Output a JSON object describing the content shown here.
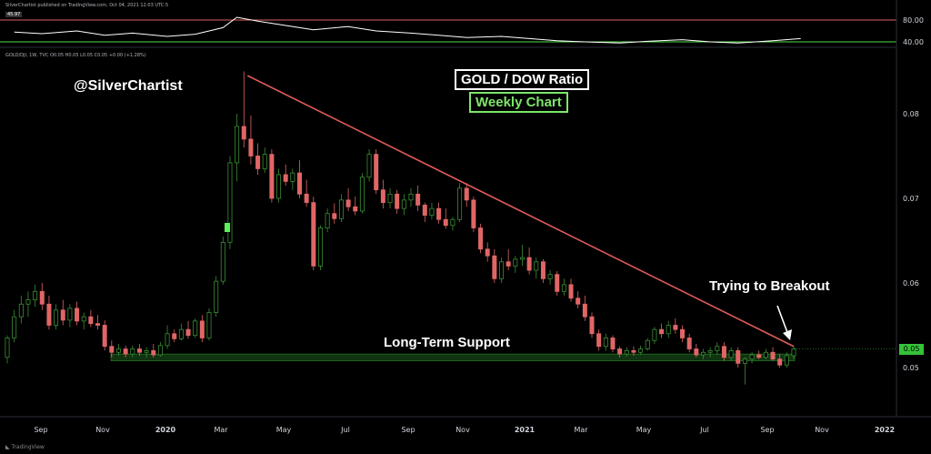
{
  "header": {
    "published": "SilverChartist published on TradingView.com, Oct 04, 2021 12:03 UTC-5",
    "symbol_line": "GOLD/DJI, 1W, TVC  O0.05  H0.05  L0.05  C0.05  +0.00 (+1.28%)",
    "oscillator_value": "45.97"
  },
  "annotations": {
    "handle": "@SilverChartist",
    "title": "GOLD / DOW Ratio",
    "subtitle": "Weekly Chart",
    "breakout": "Trying to Breakout",
    "support": "Long-Term Support"
  },
  "price_badge": "0.05",
  "logo": "TradingView",
  "colors": {
    "up": "#3a8f33",
    "down": "#e06666",
    "trendline": "#e05a5a",
    "support_zone": "#1d5c1d",
    "osc_upper": "#e06060",
    "osc_lower": "#54d84a",
    "osc_line": "#ffffff"
  },
  "chart_data": [
    {
      "type": "line",
      "title": "",
      "description_levels": [
        80,
        40
      ],
      "yticks": [
        "80.00",
        "40.00"
      ],
      "ylim": [
        30,
        90
      ],
      "x": [
        "2019-08-05",
        "2019-09-02",
        "2019-10-07",
        "2019-11-04",
        "2019-12-02",
        "2020-01-06",
        "2020-02-03",
        "2020-03-02",
        "2020-03-16",
        "2020-04-06",
        "2020-05-04",
        "2020-06-01",
        "2020-07-06",
        "2020-08-03",
        "2020-09-07",
        "2020-10-05",
        "2020-11-02",
        "2020-12-07",
        "2021-01-04",
        "2021-02-01",
        "2021-03-01",
        "2021-04-05",
        "2021-05-03",
        "2021-06-07",
        "2021-07-05",
        "2021-08-02",
        "2021-09-06",
        "2021-10-04"
      ],
      "series": [
        {
          "values": [
            58,
            55,
            60,
            52,
            56,
            50,
            54,
            66,
            85,
            78,
            70,
            62,
            68,
            60,
            56,
            52,
            48,
            50,
            46,
            42,
            40,
            38,
            41,
            44,
            40,
            38,
            42,
            46
          ]
        }
      ]
    },
    {
      "type": "candlestick",
      "title": "GOLD / DOW Ratio",
      "ylim": [
        0.0445,
        0.0885
      ],
      "yticks": [
        "0.08",
        "0.07",
        "0.06",
        "0.05"
      ],
      "xticks": [
        "Sep",
        "Nov",
        "2020",
        "Mar",
        "May",
        "Jul",
        "Sep",
        "Nov",
        "2021",
        "Mar",
        "May",
        "Jul",
        "Sep",
        "Nov",
        "2022"
      ],
      "candles": [
        [
          "2019-07-29",
          0.0512,
          0.0538,
          0.0505,
          0.0535
        ],
        [
          "2019-08-05",
          0.0535,
          0.0568,
          0.053,
          0.056
        ],
        [
          "2019-08-12",
          0.056,
          0.0585,
          0.0552,
          0.0575
        ],
        [
          "2019-08-19",
          0.0575,
          0.059,
          0.056,
          0.058
        ],
        [
          "2019-08-26",
          0.058,
          0.0598,
          0.0572,
          0.059
        ],
        [
          "2019-09-02",
          0.059,
          0.06,
          0.0568,
          0.0575
        ],
        [
          "2019-09-09",
          0.0575,
          0.0585,
          0.0545,
          0.055
        ],
        [
          "2019-09-16",
          0.055,
          0.0575,
          0.0545,
          0.0568
        ],
        [
          "2019-09-23",
          0.0568,
          0.058,
          0.055,
          0.0556
        ],
        [
          "2019-09-30",
          0.0556,
          0.0575,
          0.0548,
          0.057
        ],
        [
          "2019-10-07",
          0.057,
          0.0578,
          0.055,
          0.0555
        ],
        [
          "2019-10-14",
          0.0555,
          0.0565,
          0.0545,
          0.056
        ],
        [
          "2019-10-21",
          0.056,
          0.0568,
          0.0548,
          0.0552
        ],
        [
          "2019-10-28",
          0.0552,
          0.0562,
          0.0545,
          0.055
        ],
        [
          "2019-11-04",
          0.055,
          0.0556,
          0.052,
          0.0525
        ],
        [
          "2019-11-11",
          0.0525,
          0.0532,
          0.0512,
          0.0518
        ],
        [
          "2019-11-18",
          0.0518,
          0.0528,
          0.0514,
          0.0522
        ],
        [
          "2019-11-25",
          0.0522,
          0.0526,
          0.0512,
          0.0516
        ],
        [
          "2019-12-02",
          0.0516,
          0.0526,
          0.0512,
          0.0522
        ],
        [
          "2019-12-09",
          0.0522,
          0.0528,
          0.0514,
          0.0518
        ],
        [
          "2019-12-16",
          0.0518,
          0.0524,
          0.0512,
          0.052
        ],
        [
          "2019-12-23",
          0.052,
          0.0528,
          0.0512,
          0.0515
        ],
        [
          "2019-12-30",
          0.0515,
          0.053,
          0.0513,
          0.0526
        ],
        [
          "2020-01-06",
          0.0526,
          0.055,
          0.0522,
          0.054
        ],
        [
          "2020-01-13",
          0.054,
          0.0545,
          0.053,
          0.0534
        ],
        [
          "2020-01-20",
          0.0534,
          0.0552,
          0.0532,
          0.0545
        ],
        [
          "2020-01-27",
          0.0545,
          0.0555,
          0.0534,
          0.0538
        ],
        [
          "2020-02-03",
          0.0538,
          0.0558,
          0.0535,
          0.0555
        ],
        [
          "2020-02-10",
          0.0555,
          0.0562,
          0.053,
          0.0535
        ],
        [
          "2020-02-17",
          0.0535,
          0.057,
          0.0532,
          0.0565
        ],
        [
          "2020-02-24",
          0.0565,
          0.0608,
          0.056,
          0.0602
        ],
        [
          "2020-03-02",
          0.0602,
          0.0655,
          0.0598,
          0.0648
        ],
        [
          "2020-03-09",
          0.0648,
          0.075,
          0.064,
          0.0742
        ],
        [
          "2020-03-16",
          0.0742,
          0.08,
          0.072,
          0.0785
        ],
        [
          "2020-03-23",
          0.0785,
          0.085,
          0.076,
          0.077
        ],
        [
          "2020-03-30",
          0.077,
          0.0798,
          0.074,
          0.075
        ],
        [
          "2020-04-06",
          0.075,
          0.0765,
          0.0728,
          0.0735
        ],
        [
          "2020-04-13",
          0.0735,
          0.076,
          0.073,
          0.0752
        ],
        [
          "2020-04-20",
          0.0752,
          0.0758,
          0.0695,
          0.07
        ],
        [
          "2020-04-27",
          0.07,
          0.0735,
          0.0695,
          0.0728
        ],
        [
          "2020-05-04",
          0.0728,
          0.074,
          0.0715,
          0.072
        ],
        [
          "2020-05-11",
          0.072,
          0.0735,
          0.071,
          0.073
        ],
        [
          "2020-05-18",
          0.073,
          0.0745,
          0.07,
          0.0705
        ],
        [
          "2020-05-25",
          0.0705,
          0.0722,
          0.069,
          0.0695
        ],
        [
          "2020-06-01",
          0.0695,
          0.0702,
          0.0615,
          0.062
        ],
        [
          "2020-06-08",
          0.062,
          0.0668,
          0.0615,
          0.0665
        ],
        [
          "2020-06-15",
          0.0665,
          0.0688,
          0.066,
          0.0682
        ],
        [
          "2020-06-22",
          0.0682,
          0.0694,
          0.067,
          0.0676
        ],
        [
          "2020-06-29",
          0.0676,
          0.0705,
          0.0672,
          0.0698
        ],
        [
          "2020-07-06",
          0.0698,
          0.0712,
          0.0685,
          0.069
        ],
        [
          "2020-07-13",
          0.069,
          0.0702,
          0.068,
          0.0685
        ],
        [
          "2020-07-20",
          0.0685,
          0.073,
          0.0682,
          0.0725
        ],
        [
          "2020-07-27",
          0.0725,
          0.0758,
          0.072,
          0.0752
        ],
        [
          "2020-08-03",
          0.0752,
          0.0758,
          0.0705,
          0.071
        ],
        [
          "2020-08-10",
          0.071,
          0.0722,
          0.0688,
          0.0695
        ],
        [
          "2020-08-17",
          0.0695,
          0.0712,
          0.0688,
          0.0705
        ],
        [
          "2020-08-24",
          0.0705,
          0.071,
          0.0682,
          0.0688
        ],
        [
          "2020-08-31",
          0.0688,
          0.0705,
          0.068,
          0.0698
        ],
        [
          "2020-09-07",
          0.0698,
          0.0712,
          0.069,
          0.0705
        ],
        [
          "2020-09-14",
          0.0705,
          0.0715,
          0.0685,
          0.0692
        ],
        [
          "2020-09-21",
          0.0692,
          0.0695,
          0.0672,
          0.068
        ],
        [
          "2020-09-28",
          0.068,
          0.0695,
          0.0675,
          0.0688
        ],
        [
          "2020-10-05",
          0.0688,
          0.0695,
          0.067,
          0.0675
        ],
        [
          "2020-10-12",
          0.0675,
          0.0688,
          0.0664,
          0.0668
        ],
        [
          "2020-10-19",
          0.0668,
          0.0678,
          0.0662,
          0.0675
        ],
        [
          "2020-10-26",
          0.0675,
          0.0718,
          0.0672,
          0.0712
        ],
        [
          "2020-11-02",
          0.0712,
          0.0718,
          0.069,
          0.0698
        ],
        [
          "2020-11-09",
          0.0698,
          0.0702,
          0.066,
          0.0665
        ],
        [
          "2020-11-16",
          0.0665,
          0.067,
          0.0635,
          0.064
        ],
        [
          "2020-11-23",
          0.064,
          0.0648,
          0.0625,
          0.0632
        ],
        [
          "2020-11-30",
          0.0632,
          0.064,
          0.06,
          0.0605
        ],
        [
          "2020-12-07",
          0.0605,
          0.063,
          0.06,
          0.0625
        ],
        [
          "2020-12-14",
          0.0625,
          0.064,
          0.0615,
          0.062
        ],
        [
          "2020-12-21",
          0.062,
          0.0632,
          0.0612,
          0.0628
        ],
        [
          "2020-12-28",
          0.0628,
          0.0645,
          0.062,
          0.063
        ],
        [
          "2021-01-04",
          0.063,
          0.0642,
          0.061,
          0.0615
        ],
        [
          "2021-01-11",
          0.0615,
          0.063,
          0.0605,
          0.0625
        ],
        [
          "2021-01-18",
          0.0625,
          0.0628,
          0.06,
          0.0605
        ],
        [
          "2021-01-25",
          0.0605,
          0.0615,
          0.0598,
          0.061
        ],
        [
          "2021-02-01",
          0.061,
          0.0614,
          0.0585,
          0.059
        ],
        [
          "2021-02-08",
          0.059,
          0.0605,
          0.0585,
          0.0598
        ],
        [
          "2021-02-15",
          0.0598,
          0.0605,
          0.0578,
          0.0582
        ],
        [
          "2021-02-22",
          0.0582,
          0.059,
          0.057,
          0.0575
        ],
        [
          "2021-03-01",
          0.0575,
          0.0585,
          0.0555,
          0.056
        ],
        [
          "2021-03-08",
          0.056,
          0.0565,
          0.0535,
          0.054
        ],
        [
          "2021-03-15",
          0.054,
          0.0545,
          0.052,
          0.0525
        ],
        [
          "2021-03-22",
          0.0525,
          0.054,
          0.052,
          0.0535
        ],
        [
          "2021-03-29",
          0.0535,
          0.0538,
          0.0518,
          0.0522
        ],
        [
          "2021-04-05",
          0.0522,
          0.0525,
          0.0512,
          0.0516
        ],
        [
          "2021-04-12",
          0.0516,
          0.0524,
          0.0513,
          0.052
        ],
        [
          "2021-04-19",
          0.052,
          0.0525,
          0.0514,
          0.0518
        ],
        [
          "2021-04-26",
          0.0518,
          0.0526,
          0.0515,
          0.0522
        ],
        [
          "2021-05-03",
          0.0522,
          0.0535,
          0.052,
          0.0532
        ],
        [
          "2021-05-10",
          0.0532,
          0.0548,
          0.0528,
          0.0545
        ],
        [
          "2021-05-17",
          0.0545,
          0.0552,
          0.0535,
          0.054
        ],
        [
          "2021-05-24",
          0.054,
          0.0555,
          0.0535,
          0.055
        ],
        [
          "2021-05-31",
          0.055,
          0.0558,
          0.054,
          0.0545
        ],
        [
          "2021-06-07",
          0.0545,
          0.055,
          0.053,
          0.0535
        ],
        [
          "2021-06-14",
          0.0535,
          0.054,
          0.0518,
          0.0522
        ],
        [
          "2021-06-21",
          0.0522,
          0.0528,
          0.0512,
          0.0515
        ],
        [
          "2021-06-28",
          0.0515,
          0.0522,
          0.051,
          0.0518
        ],
        [
          "2021-07-05",
          0.0518,
          0.0524,
          0.0512,
          0.052
        ],
        [
          "2021-07-12",
          0.052,
          0.053,
          0.0515,
          0.0525
        ],
        [
          "2021-07-19",
          0.0525,
          0.053,
          0.0508,
          0.0512
        ],
        [
          "2021-07-26",
          0.0512,
          0.0524,
          0.0508,
          0.052
        ],
        [
          "2021-08-02",
          0.052,
          0.0524,
          0.05,
          0.0505
        ],
        [
          "2021-08-09",
          0.0505,
          0.0512,
          0.048,
          0.051
        ],
        [
          "2021-08-16",
          0.051,
          0.0518,
          0.0505,
          0.0515
        ],
        [
          "2021-08-23",
          0.0515,
          0.052,
          0.051,
          0.0512
        ],
        [
          "2021-08-30",
          0.0512,
          0.0522,
          0.051,
          0.0518
        ],
        [
          "2021-09-06",
          0.0518,
          0.0524,
          0.0508,
          0.051
        ],
        [
          "2021-09-13",
          0.051,
          0.0516,
          0.05,
          0.0503
        ],
        [
          "2021-09-20",
          0.0503,
          0.0518,
          0.05,
          0.0514
        ],
        [
          "2021-09-27",
          0.0514,
          0.0525,
          0.051,
          0.0522
        ]
      ],
      "trendline": [
        [
          "2020-03-23",
          0.0845
        ],
        [
          "2021-09-27",
          0.0525
        ]
      ],
      "support_zone": [
        0.0508,
        0.0516
      ],
      "last_price": 0.0522
    }
  ]
}
